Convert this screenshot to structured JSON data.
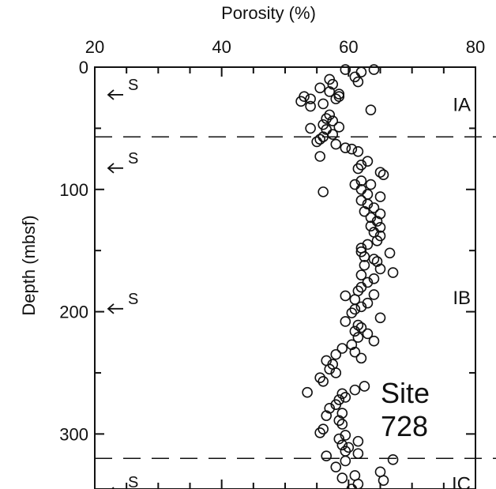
{
  "chart_data": {
    "type": "scatter",
    "xlabel": "Porosity (%)",
    "ylabel": "Depth (mbsf)",
    "xlim": [
      20,
      80
    ],
    "ylim": [
      0,
      345
    ],
    "y_inverted": true,
    "x_axis_position": "top",
    "x_ticks": [
      20,
      40,
      60,
      80
    ],
    "x_tick_labels": [
      "20",
      "40",
      "60",
      "80"
    ],
    "y_ticks": [
      0,
      100,
      200,
      300
    ],
    "y_tick_labels": [
      "0",
      "100",
      "200",
      "300"
    ],
    "grid": false,
    "annotation": [
      "Site",
      "728"
    ],
    "units": [
      {
        "label": "IA",
        "depth": 30
      },
      {
        "label": "IB",
        "depth": 188
      },
      {
        "label": "IC",
        "depth": 340
      }
    ],
    "boundaries": [
      57,
      320
    ],
    "s_markers": [
      {
        "label": "S",
        "depth": 20
      },
      {
        "label": "S",
        "depth": 80
      },
      {
        "label": "S",
        "depth": 195
      },
      {
        "label": "S",
        "depth": 345
      }
    ],
    "series": [
      {
        "points": [
          [
            59.5,
            2
          ],
          [
            64,
            2
          ],
          [
            62,
            4
          ],
          [
            61,
            8
          ],
          [
            57,
            10
          ],
          [
            61.5,
            12
          ],
          [
            57.5,
            14
          ],
          [
            55.5,
            17
          ],
          [
            57,
            20
          ],
          [
            58.5,
            22
          ],
          [
            58.5,
            24
          ],
          [
            53,
            24
          ],
          [
            54,
            26
          ],
          [
            58,
            26
          ],
          [
            52.5,
            28
          ],
          [
            56,
            30
          ],
          [
            54,
            32
          ],
          [
            63.5,
            35
          ],
          [
            57,
            39
          ],
          [
            56.5,
            42
          ],
          [
            57.5,
            44
          ],
          [
            56,
            47
          ],
          [
            58.5,
            49
          ],
          [
            54,
            50
          ],
          [
            56.5,
            51
          ],
          [
            57.5,
            55
          ],
          [
            56,
            57
          ],
          [
            55.5,
            59
          ],
          [
            55,
            61
          ],
          [
            58,
            63
          ],
          [
            59.5,
            66
          ],
          [
            60.5,
            67
          ],
          [
            61.5,
            69
          ],
          [
            55.5,
            73
          ],
          [
            63,
            77
          ],
          [
            62,
            80
          ],
          [
            61.5,
            83
          ],
          [
            65,
            86
          ],
          [
            65.5,
            88
          ],
          [
            62,
            93
          ],
          [
            61,
            96
          ],
          [
            63.5,
            96
          ],
          [
            62,
            100
          ],
          [
            56,
            102
          ],
          [
            63,
            104
          ],
          [
            65,
            106
          ],
          [
            62,
            109
          ],
          [
            63,
            112
          ],
          [
            64,
            115
          ],
          [
            62.5,
            118
          ],
          [
            65,
            120
          ],
          [
            63.5,
            123
          ],
          [
            64.5,
            126
          ],
          [
            63.5,
            130
          ],
          [
            65,
            131
          ],
          [
            64,
            135
          ],
          [
            65,
            138
          ],
          [
            64.5,
            142
          ],
          [
            63,
            145
          ],
          [
            62,
            148
          ],
          [
            62,
            151
          ],
          [
            66.5,
            152
          ],
          [
            62.5,
            155
          ],
          [
            64,
            157
          ],
          [
            64.5,
            159
          ],
          [
            62.5,
            162
          ],
          [
            65,
            165
          ],
          [
            67,
            168
          ],
          [
            62,
            170
          ],
          [
            64,
            173
          ],
          [
            63,
            176
          ],
          [
            62,
            180
          ],
          [
            61.5,
            183
          ],
          [
            64,
            186
          ],
          [
            59.5,
            187
          ],
          [
            61,
            190
          ],
          [
            63,
            193
          ],
          [
            62,
            196
          ],
          [
            61,
            198
          ],
          [
            60.5,
            201
          ],
          [
            65,
            205
          ],
          [
            59.5,
            208
          ],
          [
            61.5,
            211
          ],
          [
            62,
            213
          ],
          [
            61,
            216
          ],
          [
            63,
            218
          ],
          [
            61.5,
            221
          ],
          [
            64,
            224
          ],
          [
            60.5,
            227
          ],
          [
            59,
            230
          ],
          [
            61,
            233
          ],
          [
            58,
            235
          ],
          [
            62,
            238
          ],
          [
            56.5,
            240
          ],
          [
            57.5,
            243
          ],
          [
            57,
            247
          ],
          [
            58,
            250
          ],
          [
            55.5,
            254
          ],
          [
            56,
            257
          ],
          [
            62.5,
            261
          ],
          [
            61,
            264
          ],
          [
            53.5,
            266
          ],
          [
            59,
            267
          ],
          [
            59.5,
            270
          ],
          [
            58.5,
            272
          ],
          [
            58,
            276
          ],
          [
            57,
            279
          ],
          [
            59,
            283
          ],
          [
            56.5,
            285
          ],
          [
            58.5,
            289
          ],
          [
            59,
            292
          ],
          [
            56,
            296
          ],
          [
            55.5,
            299
          ],
          [
            59.5,
            301
          ],
          [
            58.5,
            304
          ],
          [
            61.5,
            306
          ],
          [
            59,
            309
          ],
          [
            60,
            311
          ],
          [
            59.5,
            314
          ],
          [
            61.5,
            316
          ],
          [
            56.5,
            318
          ],
          [
            67,
            321
          ],
          [
            59.5,
            322
          ],
          [
            58,
            327
          ],
          [
            65,
            331
          ],
          [
            61,
            334
          ],
          [
            59,
            336
          ],
          [
            65.5,
            338
          ],
          [
            61.5,
            341
          ],
          [
            60.5,
            345
          ]
        ]
      }
    ]
  }
}
